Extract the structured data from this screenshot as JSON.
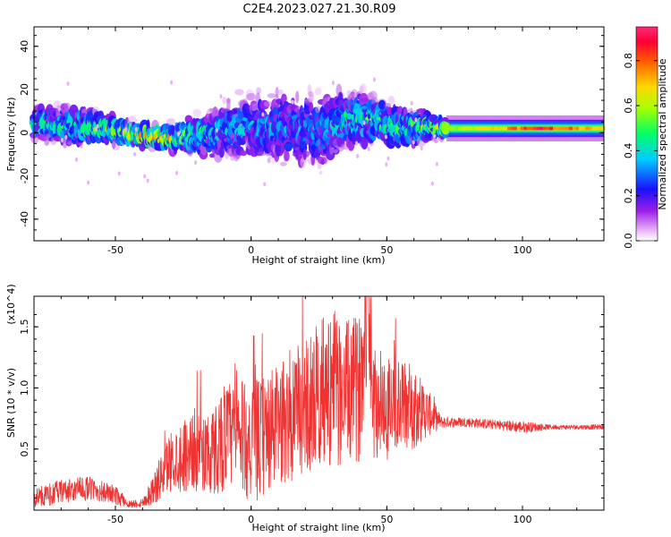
{
  "figure": {
    "title": "C2E4.2023.027.21.30.R09"
  },
  "chart_data": [
    {
      "type": "heatmap",
      "xlabel": "Height of straight line (km)",
      "ylabel": "Frequency (Hz)",
      "xlim": [
        -80,
        130
      ],
      "ylim": [
        -50,
        49
      ],
      "xticks": [
        -50,
        0,
        50,
        100
      ],
      "yticks": [
        -40,
        -20,
        0,
        20,
        40
      ],
      "colorbar": {
        "label": "Normalized spectral amplitude",
        "range": [
          0.0,
          0.95
        ],
        "ticks": [
          0.0,
          0.2,
          0.4,
          0.6,
          0.8
        ]
      },
      "ridge": [
        {
          "x": -80,
          "freq": 4,
          "spread": 5,
          "amp": 0.45
        },
        {
          "x": -65,
          "freq": 3,
          "spread": 5,
          "amp": 0.5
        },
        {
          "x": -55,
          "freq": 2,
          "spread": 4,
          "amp": 0.55
        },
        {
          "x": -45,
          "freq": 0,
          "spread": 3,
          "amp": 0.7
        },
        {
          "x": -35,
          "freq": -2,
          "spread": 3,
          "amp": 0.75
        },
        {
          "x": -25,
          "freq": -2,
          "spread": 4,
          "amp": 0.6
        },
        {
          "x": -15,
          "freq": 0,
          "spread": 7,
          "amp": 0.4
        },
        {
          "x": 0,
          "freq": 3,
          "spread": 9,
          "amp": 0.35
        },
        {
          "x": 15,
          "freq": 2,
          "spread": 10,
          "amp": 0.35
        },
        {
          "x": 25,
          "freq": 0,
          "spread": 10,
          "amp": 0.35
        },
        {
          "x": 35,
          "freq": 6,
          "spread": 8,
          "amp": 0.45
        },
        {
          "x": 45,
          "freq": 6,
          "spread": 7,
          "amp": 0.5
        },
        {
          "x": 55,
          "freq": 2,
          "spread": 5,
          "amp": 0.5
        },
        {
          "x": 65,
          "freq": 3,
          "spread": 4,
          "amp": 0.55
        },
        {
          "x": 72,
          "freq": 2,
          "spread": 2,
          "amp": 0.6
        },
        {
          "x": 90,
          "freq": 2,
          "spread": 1.5,
          "amp": 0.75
        },
        {
          "x": 105,
          "freq": 2,
          "spread": 1.5,
          "amp": 0.95
        },
        {
          "x": 130,
          "freq": 2,
          "spread": 1.5,
          "amp": 0.7
        }
      ]
    },
    {
      "type": "line",
      "xlabel": "Height of straight line (km)",
      "ylabel": "SNR (10 * v/v)",
      "y_multiplier": "(x10^4)",
      "xlim": [
        -80,
        130
      ],
      "ylim": [
        0.0,
        1.75
      ],
      "xticks": [
        -50,
        0,
        50,
        100
      ],
      "yticks": [
        0.5,
        1.0,
        1.5
      ],
      "ytick_labels": [
        "0.5",
        "1.0",
        "1.5"
      ],
      "color": "#ee3333",
      "series": [
        {
          "x": [
            -80,
            -70,
            -60,
            -50,
            -45,
            -40,
            -35,
            -30,
            -25,
            -20,
            -15,
            -10,
            -5,
            0,
            5,
            10,
            15,
            20,
            25,
            30,
            35,
            40,
            43,
            45,
            50,
            55,
            60,
            65,
            70,
            75,
            80,
            90,
            100,
            110,
            120,
            130
          ],
          "values": [
            0.1,
            0.15,
            0.18,
            0.12,
            0.05,
            0.06,
            0.2,
            0.4,
            0.45,
            0.5,
            0.45,
            0.6,
            0.62,
            0.55,
            0.6,
            0.7,
            0.75,
            0.85,
            0.95,
            1.0,
            0.95,
            1.0,
            1.75,
            0.9,
            0.85,
            0.85,
            0.85,
            0.8,
            0.72,
            0.72,
            0.72,
            0.7,
            0.68,
            0.68,
            0.68,
            0.68
          ],
          "noise": [
            0.08,
            0.1,
            0.1,
            0.08,
            0.03,
            0.04,
            0.15,
            0.25,
            0.3,
            0.35,
            0.35,
            0.45,
            0.45,
            0.5,
            0.5,
            0.5,
            0.55,
            0.55,
            0.6,
            0.65,
            0.6,
            0.6,
            0.6,
            0.5,
            0.45,
            0.4,
            0.35,
            0.2,
            0.05,
            0.04,
            0.04,
            0.04,
            0.05,
            0.02,
            0.02,
            0.02
          ]
        }
      ]
    }
  ]
}
